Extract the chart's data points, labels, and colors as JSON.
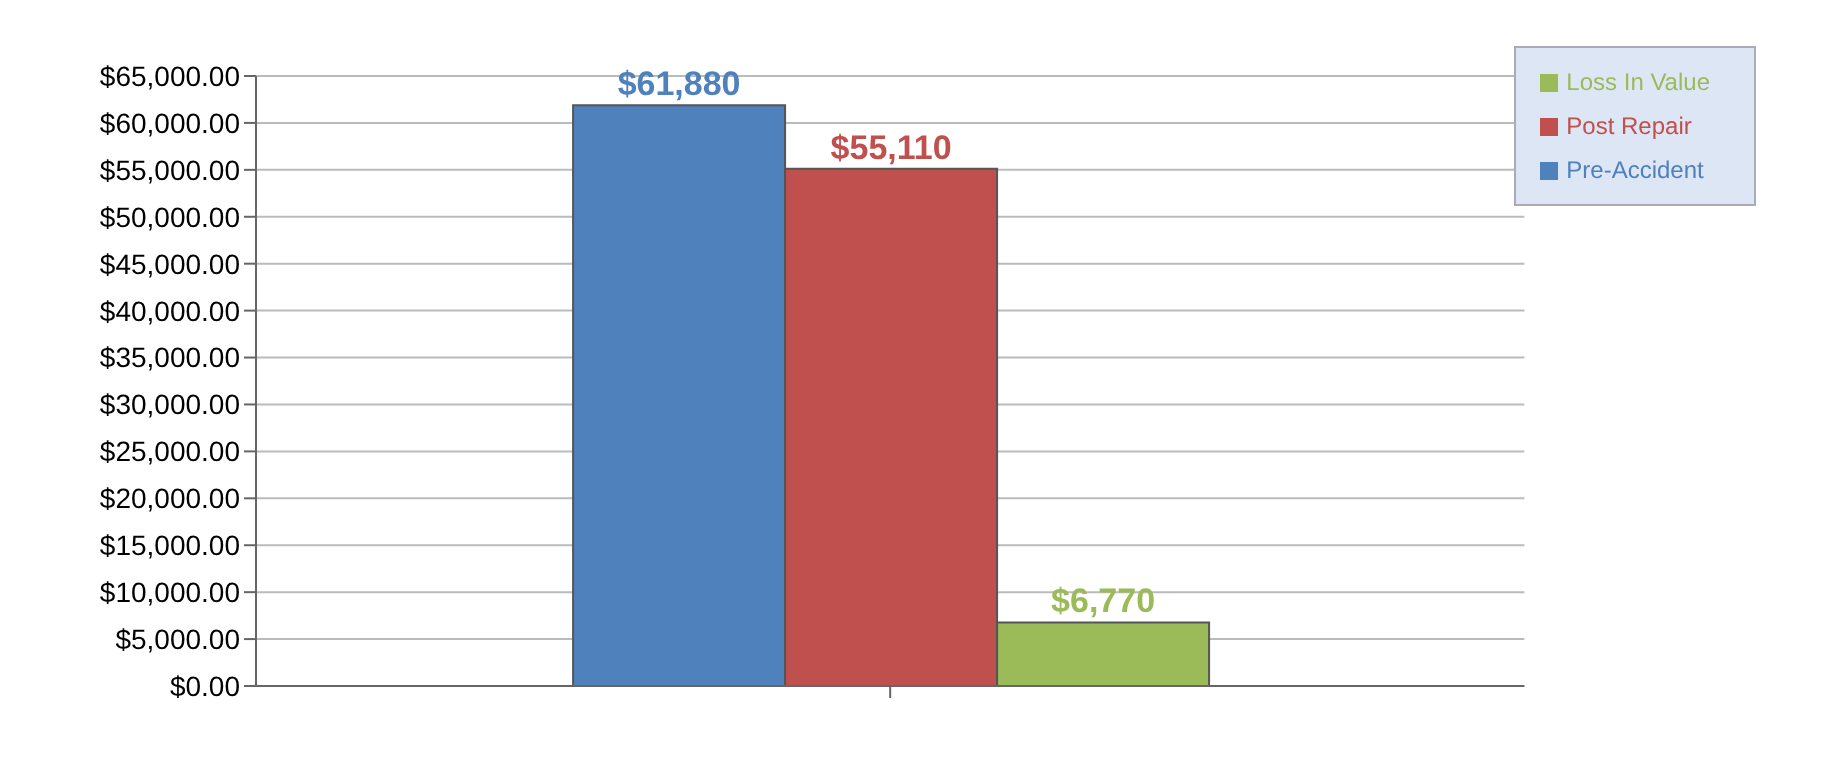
{
  "chart_data": {
    "type": "bar",
    "categories": [
      null
    ],
    "series": [
      {
        "name": "Pre-Accident",
        "color": "#4f81bd",
        "values": [
          61880
        ],
        "value_labels": [
          "$61,880"
        ]
      },
      {
        "name": "Post Repair",
        "color": "#c0504d",
        "values": [
          55110
        ],
        "value_labels": [
          "$55,110"
        ]
      },
      {
        "name": "Loss In Value",
        "color": "#9bbb59",
        "values": [
          6770
        ],
        "value_labels": [
          "$6,770"
        ]
      }
    ],
    "ylim": [
      0,
      65000
    ],
    "yticks": [
      {
        "value": 0,
        "label": "$0.00"
      },
      {
        "value": 5000,
        "label": "$5,000.00"
      },
      {
        "value": 10000,
        "label": "$10,000.00"
      },
      {
        "value": 15000,
        "label": "$15,000.00"
      },
      {
        "value": 20000,
        "label": "$20,000.00"
      },
      {
        "value": 25000,
        "label": "$25,000.00"
      },
      {
        "value": 30000,
        "label": "$30,000.00"
      },
      {
        "value": 35000,
        "label": "$35,000.00"
      },
      {
        "value": 40000,
        "label": "$40,000.00"
      },
      {
        "value": 45000,
        "label": "$45,000.00"
      },
      {
        "value": 50000,
        "label": "$50,000.00"
      },
      {
        "value": 55000,
        "label": "$55,000.00"
      },
      {
        "value": 60000,
        "label": "$60,000.00"
      },
      {
        "value": 65000,
        "label": "$65,000.00"
      }
    ],
    "grid": "y",
    "legend": "top right"
  }
}
